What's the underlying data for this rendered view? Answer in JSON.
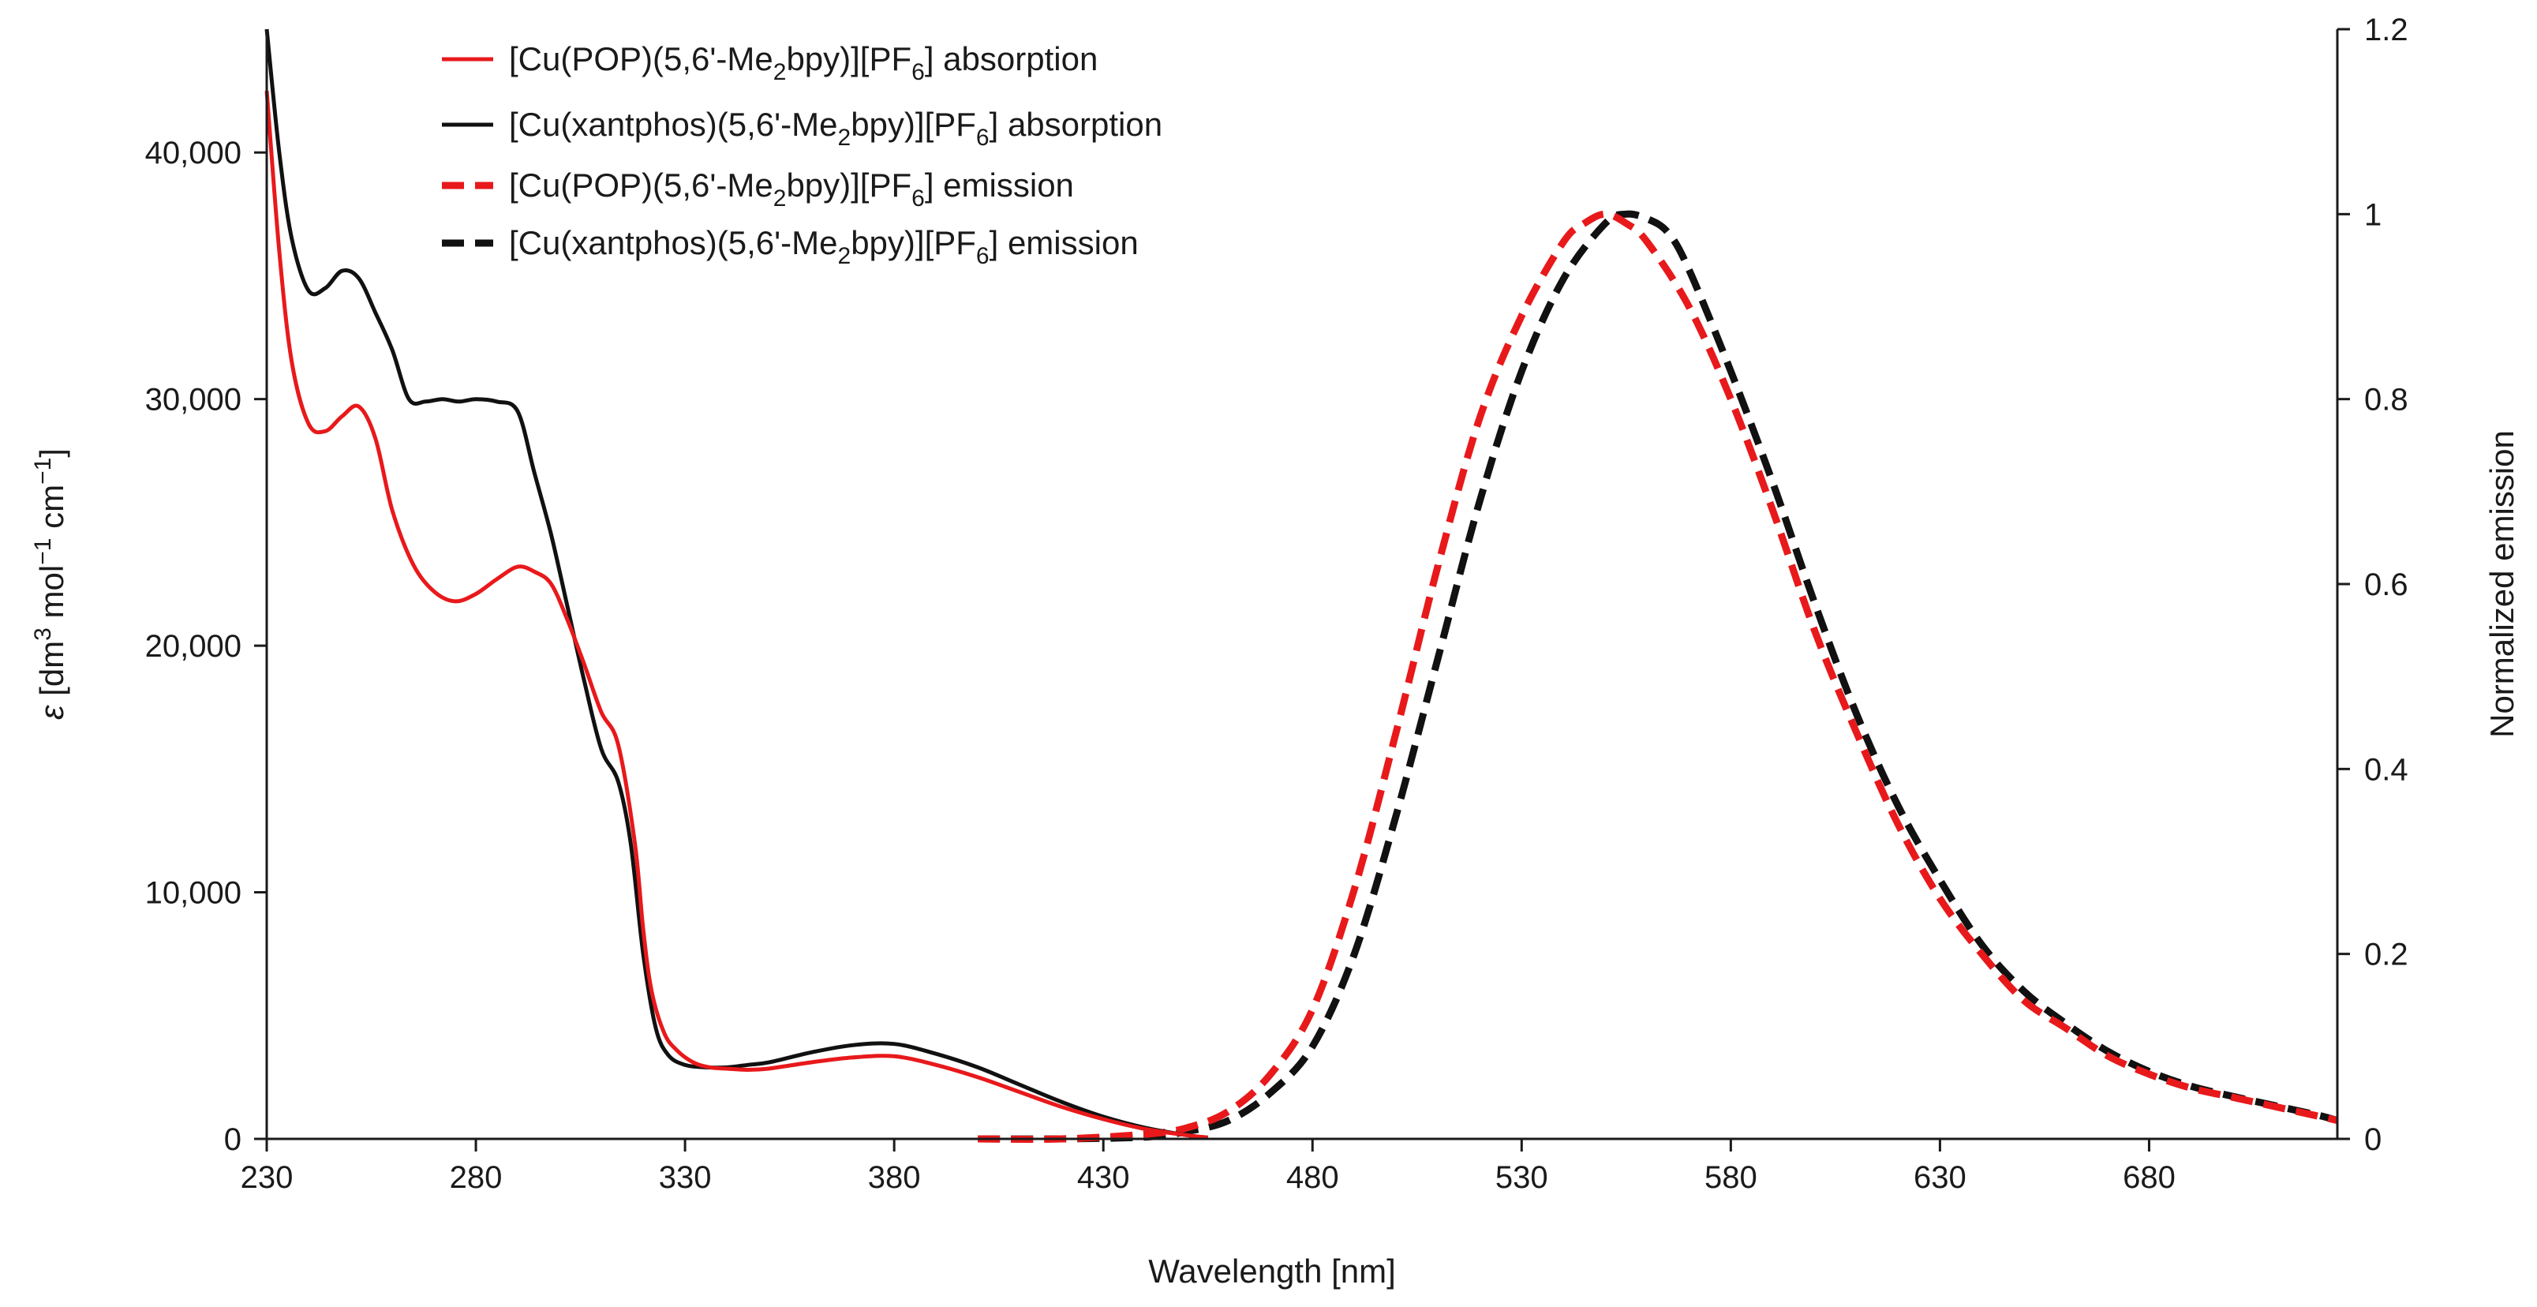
{
  "chart_data": {
    "type": "line",
    "xlabel": "Wavelength [nm]",
    "ylabel_left": {
      "symbol": "ε",
      "pre": " [dm",
      "sup1": "3",
      "mid1": " mol",
      "sup2": "−1",
      "mid2": " cm",
      "sup3": "−1",
      "post": "]"
    },
    "ylabel_right": "Normalized emission",
    "xlim": [
      230,
      725
    ],
    "xticks": [
      230,
      280,
      330,
      380,
      430,
      480,
      530,
      580,
      630,
      680
    ],
    "ylim_left": [
      0,
      45000
    ],
    "yticks_left": [
      0,
      10000,
      20000,
      30000,
      40000
    ],
    "ytick_labels_left": [
      "0",
      "10,000",
      "20,000",
      "30,000",
      "40,000"
    ],
    "ylim_right": [
      0,
      1.2
    ],
    "yticks_right": [
      0,
      0.2,
      0.4,
      0.6,
      0.8,
      1,
      1.2
    ],
    "ytick_labels_right": [
      "0",
      "0.2",
      "0.4",
      "0.6",
      "0.8",
      "1",
      "1.2"
    ],
    "legend_position": "top-left",
    "series": [
      {
        "name": "[Cu(POP)(5,6'-Me2bpy)][PF6] absorption",
        "legend": {
          "pre": "[Cu(POP)(5,6'-Me",
          "sub1": "2",
          "mid": "bpy)][PF",
          "sub2": "6",
          "post": "]  absorption"
        },
        "color": "#e8191b",
        "dash": "solid",
        "axis": "left",
        "x": [
          230,
          233,
          236,
          240,
          244,
          248,
          252,
          256,
          260,
          265,
          270,
          275,
          280,
          285,
          290,
          294,
          298,
          302,
          306,
          310,
          314,
          318,
          320,
          322,
          325,
          328,
          332,
          336,
          340,
          345,
          350,
          360,
          370,
          380,
          390,
          400,
          410,
          420,
          430,
          440,
          450,
          455
        ],
        "y": [
          42500,
          36000,
          31500,
          29000,
          28700,
          29300,
          29700,
          28400,
          25500,
          23300,
          22200,
          21800,
          22100,
          22700,
          23200,
          23000,
          22500,
          21000,
          19200,
          17300,
          16000,
          12000,
          8500,
          6000,
          4300,
          3600,
          3100,
          2900,
          2850,
          2800,
          2850,
          3100,
          3300,
          3350,
          3000,
          2500,
          1900,
          1300,
          800,
          400,
          150,
          50
        ]
      },
      {
        "name": "[Cu(xantphos)(5,6'-Me2bpy)][PF6] absorption",
        "legend": {
          "pre": "[Cu(xantphos)(5,6'-Me",
          "sub1": "2",
          "mid": "bpy)][PF",
          "sub2": "6",
          "post": "]  absorption"
        },
        "color": "#111111",
        "dash": "solid",
        "axis": "left",
        "x": [
          230,
          233,
          236,
          240,
          244,
          248,
          252,
          256,
          260,
          264,
          268,
          272,
          276,
          280,
          285,
          290,
          294,
          298,
          302,
          306,
          310,
          314,
          317,
          320,
          323,
          326,
          330,
          335,
          340,
          345,
          350,
          360,
          370,
          380,
          390,
          400,
          410,
          420,
          430,
          440,
          450,
          455
        ],
        "y": [
          45000,
          40000,
          36500,
          34400,
          34500,
          35200,
          34900,
          33500,
          32000,
          30000,
          29900,
          30000,
          29900,
          30000,
          29900,
          29500,
          27000,
          24500,
          21500,
          18500,
          15800,
          14500,
          12000,
          7500,
          4500,
          3400,
          3000,
          2900,
          2900,
          3000,
          3100,
          3500,
          3800,
          3850,
          3450,
          2900,
          2200,
          1500,
          900,
          450,
          150,
          50
        ]
      },
      {
        "name": "[Cu(POP)(5,6'-Me2bpy)][PF6] emission",
        "legend": {
          "pre": "[Cu(POP)(5,6'-Me",
          "sub1": "2",
          "mid": "bpy)][PF",
          "sub2": "6",
          "post": "]  emission"
        },
        "color": "#e8191b",
        "dash": "dashed",
        "axis": "right",
        "x": [
          400,
          420,
          440,
          450,
          460,
          470,
          480,
          490,
          500,
          510,
          520,
          530,
          540,
          545,
          550,
          555,
          560,
          570,
          580,
          590,
          600,
          610,
          620,
          630,
          640,
          650,
          660,
          670,
          680,
          690,
          700,
          710,
          720,
          725
        ],
        "y": [
          0,
          0,
          0.005,
          0.012,
          0.03,
          0.07,
          0.14,
          0.27,
          0.44,
          0.62,
          0.78,
          0.89,
          0.97,
          0.99,
          1.0,
          0.99,
          0.97,
          0.9,
          0.8,
          0.68,
          0.55,
          0.44,
          0.34,
          0.26,
          0.2,
          0.15,
          0.12,
          0.09,
          0.07,
          0.055,
          0.045,
          0.035,
          0.025,
          0.02
        ]
      },
      {
        "name": "[Cu(xantphos)(5,6'-Me2bpy)][PF6] emission",
        "legend": {
          "pre": "[Cu(xantphos)(5,6'-Me",
          "sub1": "2",
          "mid": "bpy)][PF",
          "sub2": "6",
          "post": "]  emission"
        },
        "color": "#111111",
        "dash": "dashed",
        "axis": "right",
        "x": [
          400,
          420,
          440,
          450,
          460,
          470,
          480,
          490,
          500,
          510,
          520,
          530,
          540,
          550,
          555,
          560,
          565,
          570,
          580,
          590,
          600,
          610,
          620,
          630,
          640,
          650,
          660,
          670,
          680,
          690,
          700,
          710,
          720,
          725
        ],
        "y": [
          0,
          0,
          0.002,
          0.008,
          0.02,
          0.05,
          0.1,
          0.2,
          0.35,
          0.52,
          0.69,
          0.83,
          0.93,
          0.99,
          1.0,
          0.995,
          0.98,
          0.94,
          0.83,
          0.71,
          0.58,
          0.46,
          0.36,
          0.28,
          0.21,
          0.16,
          0.125,
          0.095,
          0.073,
          0.057,
          0.046,
          0.036,
          0.026,
          0.02
        ]
      }
    ]
  }
}
